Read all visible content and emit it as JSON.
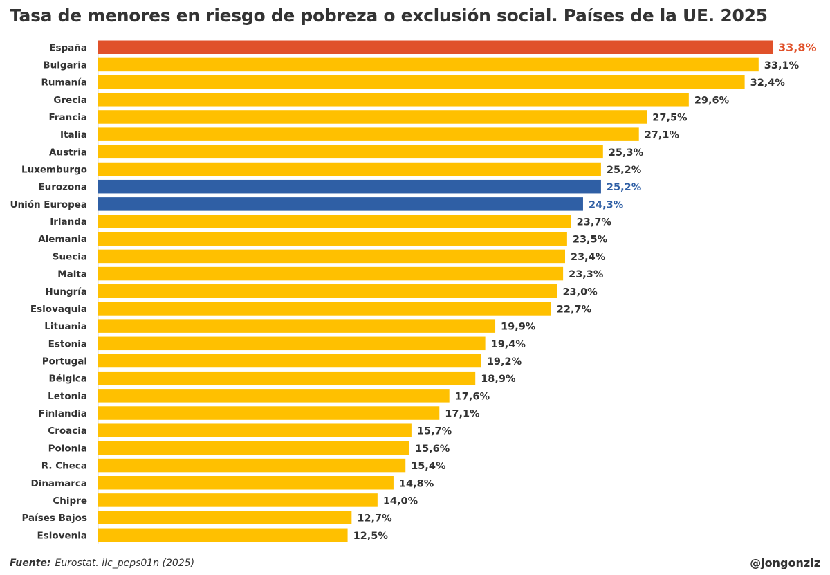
{
  "chart_data": {
    "type": "bar",
    "orientation": "horizontal",
    "title": "Tasa de menores en riesgo de pobreza o exclusión social. Países de la UE. 2025",
    "categories": [
      "España",
      "Bulgaria",
      "Rumanía",
      "Grecia",
      "Francia",
      "Italia",
      "Austria",
      "Luxemburgo",
      "Eurozona",
      "Unión Europea",
      "Irlanda",
      "Alemania",
      "Suecia",
      "Malta",
      "Hungría",
      "Eslovaquia",
      "Lituania",
      "Estonia",
      "Portugal",
      "Bélgica",
      "Letonia",
      "Finlandia",
      "Croacia",
      "Polonia",
      "R. Checa",
      "Dinamarca",
      "Chipre",
      "Países Bajos",
      "Eslovenia"
    ],
    "values": [
      33.8,
      33.1,
      32.4,
      29.6,
      27.5,
      27.1,
      25.3,
      25.2,
      25.2,
      24.3,
      23.7,
      23.5,
      23.4,
      23.3,
      23.0,
      22.7,
      19.9,
      19.4,
      19.2,
      18.9,
      17.6,
      17.1,
      15.7,
      15.6,
      15.4,
      14.8,
      14.0,
      12.7,
      12.5
    ],
    "value_labels": [
      "33,8%",
      "33,1%",
      "32,4%",
      "29,6%",
      "27,5%",
      "27,1%",
      "25,3%",
      "25,2%",
      "25,2%",
      "24,3%",
      "23,7%",
      "23,5%",
      "23,4%",
      "23,3%",
      "23,0%",
      "22,7%",
      "19,9%",
      "19,4%",
      "19,2%",
      "18,9%",
      "17,6%",
      "17,1%",
      "15,7%",
      "15,6%",
      "15,4%",
      "14,8%",
      "14,0%",
      "12,7%",
      "12,5%"
    ],
    "highlight": {
      "España": "spain",
      "Eurozona": "eu",
      "Unión Europea": "eu"
    },
    "colors": {
      "default": "#FFC000",
      "spain": "#E0512A",
      "eu": "#2F5FA5",
      "label_default": "#333333"
    },
    "xlim": [
      0,
      33.8
    ],
    "grid": false,
    "legend": "none"
  },
  "footer": {
    "source_label": "Fuente:",
    "source_text": "Eurostat. ilc_peps01n (2025)",
    "credit": "@jongonzlz"
  }
}
